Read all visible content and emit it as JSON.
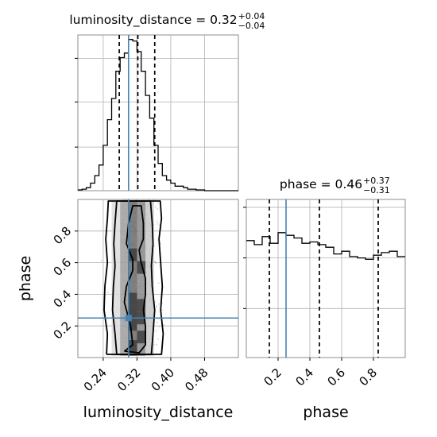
{
  "chart_data": {
    "type": "corner",
    "parameters": [
      "luminosity_distance",
      "phase"
    ],
    "truths": {
      "luminosity_distance": 0.3,
      "phase": 0.25
    },
    "truth_color": "#4682b4",
    "line_color": "#000000",
    "panels": [
      {
        "id": "hist-luminosity-distance",
        "type": "histogram",
        "param": "luminosity_distance",
        "title": {
          "prefix": "luminosity_distance = ",
          "median": "0.32",
          "plus": "+0.04",
          "minus": "−0.04"
        },
        "quantiles": [
          0.278,
          0.322,
          0.362
        ],
        "xlim": [
          0.18,
          0.56
        ],
        "bin_edges": [
          0.18,
          0.19,
          0.2,
          0.21,
          0.22,
          0.23,
          0.24,
          0.25,
          0.26,
          0.27,
          0.28,
          0.29,
          0.3,
          0.31,
          0.32,
          0.33,
          0.34,
          0.35,
          0.36,
          0.37,
          0.38,
          0.39,
          0.4,
          0.41,
          0.42,
          0.43,
          0.44,
          0.45,
          0.46,
          0.47,
          0.48,
          0.49,
          0.5,
          0.51,
          0.52,
          0.53,
          0.54,
          0.55,
          0.56
        ],
        "counts": [
          0.5,
          1,
          2,
          5,
          10,
          17,
          30,
          47,
          61,
          79,
          88,
          91,
          100,
          99,
          92,
          79,
          63,
          48,
          30,
          18,
          10,
          7,
          5,
          3,
          3,
          2,
          1,
          1,
          0.5,
          0.5,
          0,
          0,
          0,
          0,
          0,
          0,
          0,
          0
        ],
        "ymax": 103,
        "x_ticks": [
          0.24,
          0.32,
          0.4,
          0.48
        ]
      },
      {
        "id": "hist-phase",
        "type": "histogram",
        "param": "phase",
        "title": {
          "prefix": "phase = ",
          "median": "0.46",
          "plus": "+0.37",
          "minus": "−0.31"
        },
        "quantiles": [
          0.145,
          0.46,
          0.83
        ],
        "xlim": [
          0.0,
          1.0
        ],
        "bin_edges": [
          0.0,
          0.05,
          0.1,
          0.15,
          0.2,
          0.25,
          0.3,
          0.35,
          0.4,
          0.45,
          0.5,
          0.55,
          0.6,
          0.65,
          0.7,
          0.75,
          0.8,
          0.85,
          0.9,
          0.95,
          1.0
        ],
        "counts": [
          88,
          85,
          91,
          86,
          94,
          92,
          90,
          86,
          87,
          85,
          83,
          78,
          80,
          76,
          75,
          74,
          77,
          79,
          80,
          76
        ],
        "ymax": 119,
        "x_ticks": [
          0.2,
          0.4,
          0.6,
          0.8
        ],
        "xlabel": "phase"
      },
      {
        "id": "scatter-2d",
        "type": "2d-density",
        "x_param": "luminosity_distance",
        "y_param": "phase",
        "xlim": [
          0.18,
          0.56
        ],
        "ylim": [
          0.0,
          1.0
        ],
        "x_ticks": [
          0.24,
          0.32,
          0.4,
          0.48
        ],
        "y_ticks": [
          0.2,
          0.4,
          0.6,
          0.8
        ],
        "xlabel": "luminosity_distance",
        "ylabel": "phase",
        "contours": [
          {
            "level": "inner",
            "points": [
              [
                0.29,
                0.04
              ],
              [
                0.31,
                0.08
              ],
              [
                0.305,
                0.2
              ],
              [
                0.29,
                0.35
              ],
              [
                0.295,
                0.45
              ],
              [
                0.31,
                0.55
              ],
              [
                0.31,
                0.62
              ],
              [
                0.295,
                0.72
              ],
              [
                0.3,
                0.85
              ],
              [
                0.31,
                0.96
              ],
              [
                0.33,
                0.96
              ],
              [
                0.335,
                0.85
              ],
              [
                0.335,
                0.75
              ],
              [
                0.325,
                0.68
              ],
              [
                0.33,
                0.6
              ],
              [
                0.34,
                0.5
              ],
              [
                0.34,
                0.4
              ],
              [
                0.335,
                0.3
              ],
              [
                0.34,
                0.2
              ],
              [
                0.34,
                0.08
              ],
              [
                0.325,
                0.03
              ],
              [
                0.29,
                0.04
              ]
            ]
          },
          {
            "level": "middle",
            "points": [
              [
                0.272,
                0.02
              ],
              [
                0.268,
                0.15
              ],
              [
                0.262,
                0.3
              ],
              [
                0.264,
                0.45
              ],
              [
                0.268,
                0.58
              ],
              [
                0.265,
                0.72
              ],
              [
                0.268,
                0.85
              ],
              [
                0.272,
                0.99
              ],
              [
                0.352,
                0.99
              ],
              [
                0.356,
                0.85
              ],
              [
                0.358,
                0.72
              ],
              [
                0.354,
                0.58
              ],
              [
                0.356,
                0.45
              ],
              [
                0.362,
                0.3
              ],
              [
                0.358,
                0.15
              ],
              [
                0.354,
                0.02
              ],
              [
                0.272,
                0.02
              ]
            ]
          },
          {
            "level": "outer",
            "points": [
              [
                0.248,
                0.02
              ],
              [
                0.25,
                0.15
              ],
              [
                0.242,
                0.3
              ],
              [
                0.244,
                0.45
              ],
              [
                0.25,
                0.6
              ],
              [
                0.246,
                0.75
              ],
              [
                0.25,
                0.88
              ],
              [
                0.252,
                0.99
              ],
              [
                0.375,
                0.99
              ],
              [
                0.378,
                0.88
              ],
              [
                0.372,
                0.75
              ],
              [
                0.376,
                0.6
              ],
              [
                0.38,
                0.45
              ],
              [
                0.376,
                0.3
              ],
              [
                0.382,
                0.15
              ],
              [
                0.378,
                0.02
              ],
              [
                0.248,
                0.02
              ]
            ]
          }
        ],
        "density_columns": [
          {
            "x": [
              0.26,
              0.28
            ],
            "shade": "#dcdcdc"
          },
          {
            "x": [
              0.28,
              0.3
            ],
            "shade": "#9e9e9e"
          },
          {
            "x": [
              0.3,
              0.32
            ],
            "shade": "#6a6a6a"
          },
          {
            "x": [
              0.32,
              0.34
            ],
            "shade": "#8a8a8a"
          },
          {
            "x": [
              0.34,
              0.36
            ],
            "shade": "#c8c8c8"
          }
        ],
        "dark_cells": [
          {
            "x": 0.31,
            "y": 0.37
          },
          {
            "x": 0.33,
            "y": 0.33
          },
          {
            "x": 0.31,
            "y": 0.29
          },
          {
            "x": 0.33,
            "y": 0.25
          },
          {
            "x": 0.31,
            "y": 0.21
          },
          {
            "x": 0.33,
            "y": 0.13
          },
          {
            "x": 0.31,
            "y": 0.07
          },
          {
            "x": 0.33,
            "y": 0.57
          },
          {
            "x": 0.31,
            "y": 0.65
          }
        ]
      }
    ]
  }
}
